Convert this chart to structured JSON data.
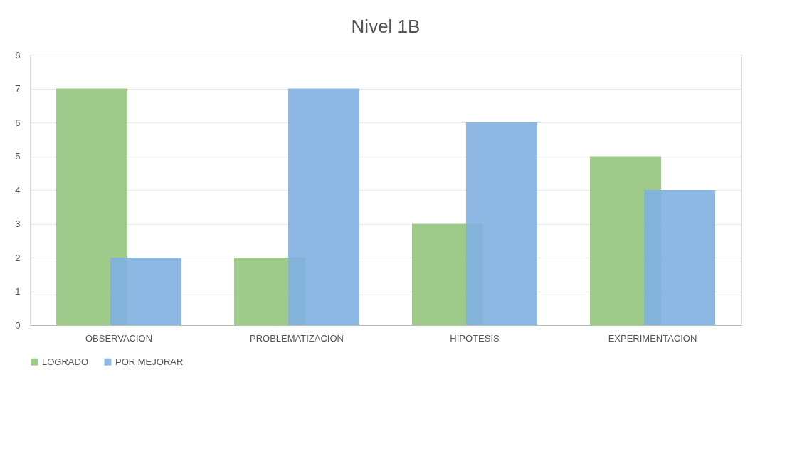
{
  "chart_data": {
    "type": "bar",
    "title": "Nivel 1B",
    "categories": [
      "OBSERVACION",
      "PROBLEMATIZACION",
      "HIPOTESIS",
      "EXPERIMENTACION"
    ],
    "series": [
      {
        "name": "LOGRADO",
        "color": "#93c47d",
        "values": [
          7,
          2,
          3,
          5
        ]
      },
      {
        "name": "POR MEJORAR",
        "color": "#7fb0e0",
        "values": [
          2,
          7,
          6,
          4
        ]
      }
    ],
    "ylim": [
      0,
      8
    ],
    "yticks": [
      0,
      1,
      2,
      3,
      4,
      5,
      6,
      7,
      8
    ],
    "grid": "y",
    "legend": "bottom"
  }
}
